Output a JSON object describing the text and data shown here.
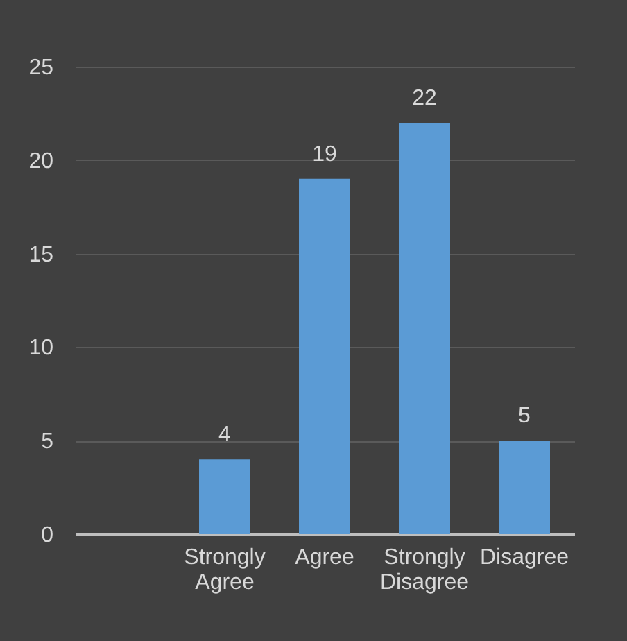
{
  "chart_data": {
    "type": "bar",
    "categories": [
      null,
      "Strongly Agree",
      "Agree",
      "Strongly Disagree",
      "Disagree"
    ],
    "values": [
      null,
      4,
      19,
      22,
      5
    ],
    "color": "#5b9bd5",
    "ylim": [
      0,
      25
    ],
    "yticks": [
      0,
      5,
      10,
      15,
      20,
      25
    ],
    "grid": "y",
    "data_labels": true
  }
}
